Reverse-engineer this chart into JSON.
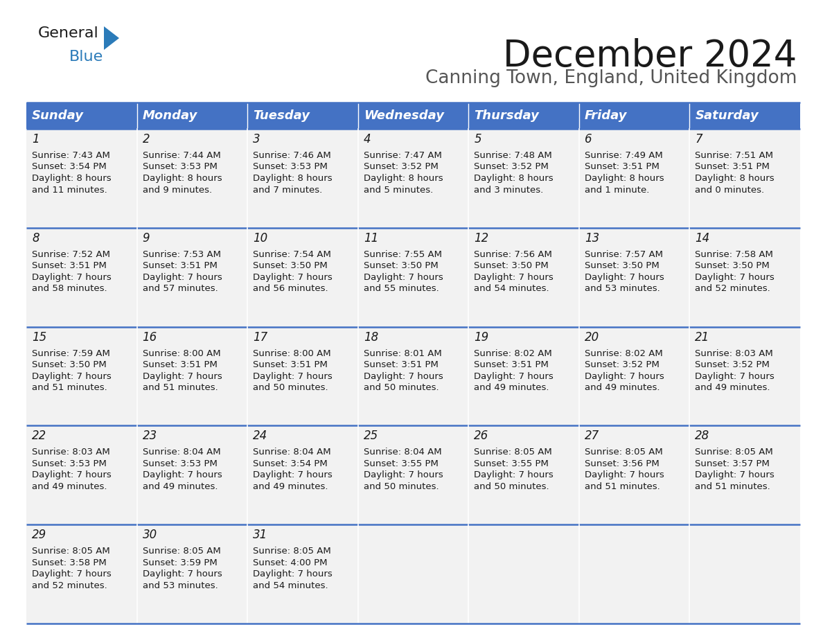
{
  "title": "December 2024",
  "subtitle": "Canning Town, England, United Kingdom",
  "header_bg": "#4472C4",
  "header_text": "#FFFFFF",
  "row_bg": "#F2F2F2",
  "border_color": "#4472C4",
  "text_color": "#1a1a1a",
  "day_names": [
    "Sunday",
    "Monday",
    "Tuesday",
    "Wednesday",
    "Thursday",
    "Friday",
    "Saturday"
  ],
  "weeks": [
    [
      {
        "day": "1",
        "sunrise": "7:43 AM",
        "sunset": "3:54 PM",
        "daylight_h": "8 hours",
        "daylight_m": "and 11 minutes."
      },
      {
        "day": "2",
        "sunrise": "7:44 AM",
        "sunset": "3:53 PM",
        "daylight_h": "8 hours",
        "daylight_m": "and 9 minutes."
      },
      {
        "day": "3",
        "sunrise": "7:46 AM",
        "sunset": "3:53 PM",
        "daylight_h": "8 hours",
        "daylight_m": "and 7 minutes."
      },
      {
        "day": "4",
        "sunrise": "7:47 AM",
        "sunset": "3:52 PM",
        "daylight_h": "8 hours",
        "daylight_m": "and 5 minutes."
      },
      {
        "day": "5",
        "sunrise": "7:48 AM",
        "sunset": "3:52 PM",
        "daylight_h": "8 hours",
        "daylight_m": "and 3 minutes."
      },
      {
        "day": "6",
        "sunrise": "7:49 AM",
        "sunset": "3:51 PM",
        "daylight_h": "8 hours",
        "daylight_m": "and 1 minute."
      },
      {
        "day": "7",
        "sunrise": "7:51 AM",
        "sunset": "3:51 PM",
        "daylight_h": "8 hours",
        "daylight_m": "and 0 minutes."
      }
    ],
    [
      {
        "day": "8",
        "sunrise": "7:52 AM",
        "sunset": "3:51 PM",
        "daylight_h": "7 hours",
        "daylight_m": "and 58 minutes."
      },
      {
        "day": "9",
        "sunrise": "7:53 AM",
        "sunset": "3:51 PM",
        "daylight_h": "7 hours",
        "daylight_m": "and 57 minutes."
      },
      {
        "day": "10",
        "sunrise": "7:54 AM",
        "sunset": "3:50 PM",
        "daylight_h": "7 hours",
        "daylight_m": "and 56 minutes."
      },
      {
        "day": "11",
        "sunrise": "7:55 AM",
        "sunset": "3:50 PM",
        "daylight_h": "7 hours",
        "daylight_m": "and 55 minutes."
      },
      {
        "day": "12",
        "sunrise": "7:56 AM",
        "sunset": "3:50 PM",
        "daylight_h": "7 hours",
        "daylight_m": "and 54 minutes."
      },
      {
        "day": "13",
        "sunrise": "7:57 AM",
        "sunset": "3:50 PM",
        "daylight_h": "7 hours",
        "daylight_m": "and 53 minutes."
      },
      {
        "day": "14",
        "sunrise": "7:58 AM",
        "sunset": "3:50 PM",
        "daylight_h": "7 hours",
        "daylight_m": "and 52 minutes."
      }
    ],
    [
      {
        "day": "15",
        "sunrise": "7:59 AM",
        "sunset": "3:50 PM",
        "daylight_h": "7 hours",
        "daylight_m": "and 51 minutes."
      },
      {
        "day": "16",
        "sunrise": "8:00 AM",
        "sunset": "3:51 PM",
        "daylight_h": "7 hours",
        "daylight_m": "and 51 minutes."
      },
      {
        "day": "17",
        "sunrise": "8:00 AM",
        "sunset": "3:51 PM",
        "daylight_h": "7 hours",
        "daylight_m": "and 50 minutes."
      },
      {
        "day": "18",
        "sunrise": "8:01 AM",
        "sunset": "3:51 PM",
        "daylight_h": "7 hours",
        "daylight_m": "and 50 minutes."
      },
      {
        "day": "19",
        "sunrise": "8:02 AM",
        "sunset": "3:51 PM",
        "daylight_h": "7 hours",
        "daylight_m": "and 49 minutes."
      },
      {
        "day": "20",
        "sunrise": "8:02 AM",
        "sunset": "3:52 PM",
        "daylight_h": "7 hours",
        "daylight_m": "and 49 minutes."
      },
      {
        "day": "21",
        "sunrise": "8:03 AM",
        "sunset": "3:52 PM",
        "daylight_h": "7 hours",
        "daylight_m": "and 49 minutes."
      }
    ],
    [
      {
        "day": "22",
        "sunrise": "8:03 AM",
        "sunset": "3:53 PM",
        "daylight_h": "7 hours",
        "daylight_m": "and 49 minutes."
      },
      {
        "day": "23",
        "sunrise": "8:04 AM",
        "sunset": "3:53 PM",
        "daylight_h": "7 hours",
        "daylight_m": "and 49 minutes."
      },
      {
        "day": "24",
        "sunrise": "8:04 AM",
        "sunset": "3:54 PM",
        "daylight_h": "7 hours",
        "daylight_m": "and 49 minutes."
      },
      {
        "day": "25",
        "sunrise": "8:04 AM",
        "sunset": "3:55 PM",
        "daylight_h": "7 hours",
        "daylight_m": "and 50 minutes."
      },
      {
        "day": "26",
        "sunrise": "8:05 AM",
        "sunset": "3:55 PM",
        "daylight_h": "7 hours",
        "daylight_m": "and 50 minutes."
      },
      {
        "day": "27",
        "sunrise": "8:05 AM",
        "sunset": "3:56 PM",
        "daylight_h": "7 hours",
        "daylight_m": "and 51 minutes."
      },
      {
        "day": "28",
        "sunrise": "8:05 AM",
        "sunset": "3:57 PM",
        "daylight_h": "7 hours",
        "daylight_m": "and 51 minutes."
      }
    ],
    [
      {
        "day": "29",
        "sunrise": "8:05 AM",
        "sunset": "3:58 PM",
        "daylight_h": "7 hours",
        "daylight_m": "and 52 minutes."
      },
      {
        "day": "30",
        "sunrise": "8:05 AM",
        "sunset": "3:59 PM",
        "daylight_h": "7 hours",
        "daylight_m": "and 53 minutes."
      },
      {
        "day": "31",
        "sunrise": "8:05 AM",
        "sunset": "4:00 PM",
        "daylight_h": "7 hours",
        "daylight_m": "and 54 minutes."
      },
      null,
      null,
      null,
      null
    ]
  ],
  "title_fontsize": 38,
  "subtitle_fontsize": 19,
  "header_fontsize": 13,
  "day_num_fontsize": 12,
  "cell_fontsize": 9.5,
  "logo_general_color": "#1a1a1a",
  "logo_blue_color": "#2B7BB9",
  "logo_triangle_color": "#2B7BB9"
}
